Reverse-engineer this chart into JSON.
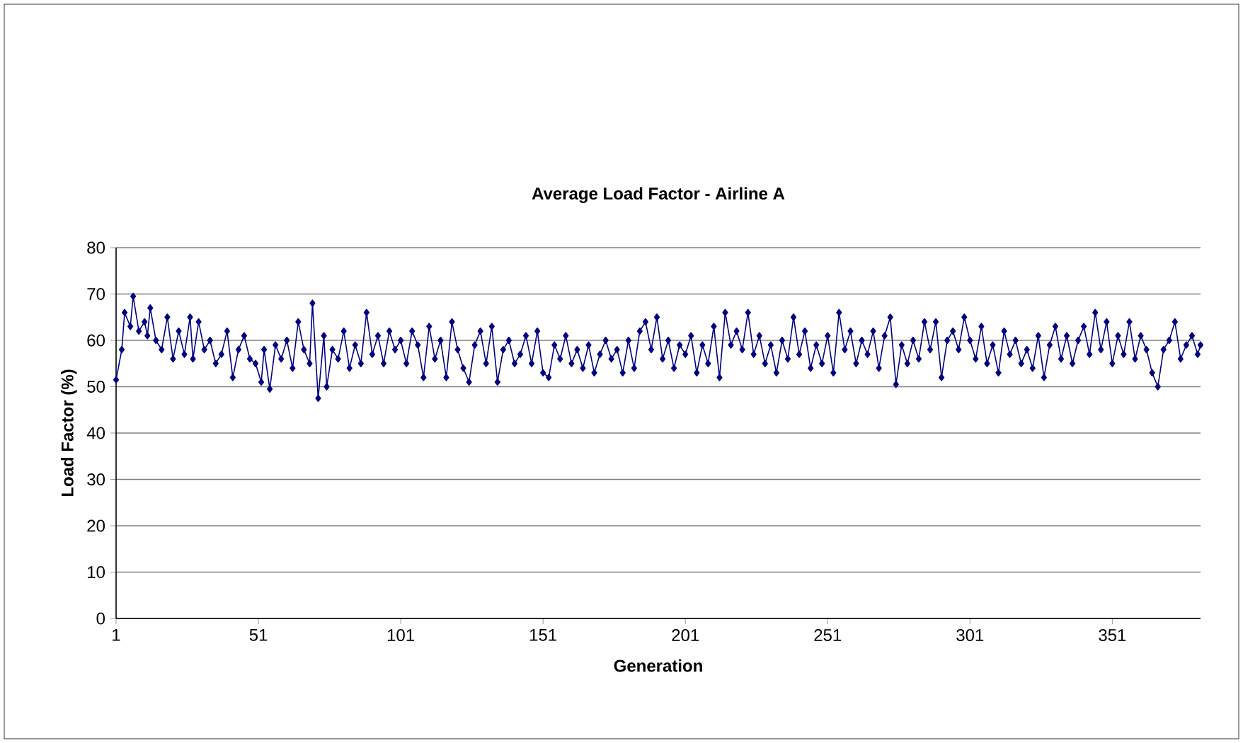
{
  "chart_data": {
    "type": "line",
    "title": "Average Load Factor - Airline A",
    "xlabel": "Generation",
    "ylabel": "Load Factor (%)",
    "xlim": [
      1,
      382
    ],
    "xticks": [
      1,
      51,
      101,
      151,
      201,
      251,
      301,
      351
    ],
    "ylim": [
      0,
      80
    ],
    "yticks": [
      0,
      10,
      20,
      30,
      40,
      50,
      60,
      70,
      80
    ],
    "grid": "y",
    "marker": "diamond",
    "line_style": "solid",
    "series": [
      {
        "color": "#000080",
        "x": [
          1,
          3,
          4,
          6,
          7,
          9,
          11,
          12,
          13,
          15,
          17,
          19,
          21,
          23,
          25,
          27,
          28,
          30,
          32,
          34,
          36,
          38,
          40,
          42,
          44,
          46,
          48,
          50,
          52,
          53,
          55,
          57,
          59,
          61,
          63,
          65,
          67,
          69,
          70,
          72,
          74,
          75,
          77,
          79,
          81,
          83,
          85,
          87,
          89,
          91,
          93,
          95,
          97,
          99,
          101,
          103,
          105,
          107,
          109,
          111,
          113,
          115,
          117,
          119,
          121,
          123,
          125,
          127,
          129,
          131,
          133,
          135,
          137,
          139,
          141,
          143,
          145,
          147,
          149,
          151,
          153,
          155,
          157,
          159,
          161,
          163,
          165,
          167,
          169,
          171,
          173,
          175,
          177,
          179,
          181,
          183,
          185,
          187,
          189,
          191,
          193,
          195,
          197,
          199,
          201,
          203,
          205,
          207,
          209,
          211,
          213,
          215,
          217,
          219,
          221,
          223,
          225,
          227,
          229,
          231,
          233,
          235,
          237,
          239,
          241,
          243,
          245,
          247,
          249,
          251,
          253,
          255,
          257,
          259,
          261,
          263,
          265,
          267,
          269,
          271,
          273,
          275,
          277,
          279,
          281,
          283,
          285,
          287,
          289,
          291,
          293,
          295,
          297,
          299,
          301,
          303,
          305,
          307,
          309,
          311,
          313,
          315,
          317,
          319,
          321,
          323,
          325,
          327,
          329,
          331,
          333,
          335,
          337,
          339,
          341,
          343,
          345,
          347,
          349,
          351,
          353,
          355,
          357,
          359,
          361,
          363,
          365,
          367,
          369,
          371,
          373,
          375,
          377,
          379,
          381,
          382
        ],
        "values": [
          51.5,
          58,
          66,
          63,
          69.5,
          62,
          64,
          61,
          67,
          60,
          58,
          65,
          56,
          62,
          57,
          65,
          56,
          64,
          58,
          60,
          55,
          57,
          62,
          52,
          58,
          61,
          56,
          55,
          51,
          58,
          49.5,
          59,
          56,
          60,
          54,
          64,
          58,
          55,
          68,
          47.5,
          61,
          50,
          58,
          56,
          62,
          54,
          59,
          55,
          66,
          57,
          61,
          55,
          62,
          58,
          60,
          55,
          62,
          59,
          52,
          63,
          56,
          60,
          52,
          64,
          58,
          54,
          51,
          59,
          62,
          55,
          63,
          51,
          58,
          60,
          55,
          57,
          61,
          55,
          62,
          53,
          52,
          59,
          56,
          61,
          55,
          58,
          54,
          59,
          53,
          57,
          60,
          56,
          58,
          53,
          60,
          54,
          62,
          64,
          58,
          65,
          56,
          60,
          54,
          59,
          57,
          61,
          53,
          59,
          55,
          63,
          52,
          66,
          59,
          62,
          58,
          66,
          57,
          61,
          55,
          59,
          53,
          60,
          56,
          65,
          57,
          62,
          54,
          59,
          55,
          61,
          53,
          66,
          58,
          62,
          55,
          60,
          57,
          62,
          54,
          61,
          65,
          50.5,
          59,
          55,
          60,
          56,
          64,
          58,
          64,
          52,
          60,
          62,
          58,
          65,
          60,
          56,
          63,
          55,
          59,
          53,
          62,
          57,
          60,
          55,
          58,
          54,
          61,
          52,
          59,
          63,
          56,
          61,
          55,
          60,
          63,
          57,
          66,
          58,
          64,
          55,
          61,
          57,
          64,
          56,
          61,
          58,
          53,
          50,
          58,
          60,
          64,
          56,
          59,
          61,
          57,
          59
        ]
      }
    ]
  }
}
